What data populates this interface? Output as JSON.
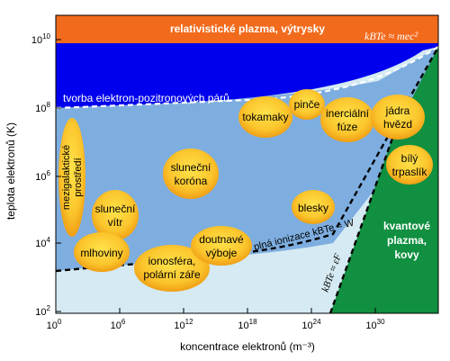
{
  "axes": {
    "y_title": "teplota elektronů (K)",
    "x_title": "koncentrace elektronů (m⁻³)",
    "y_ticks": [
      {
        "base": "10",
        "exp": "2"
      },
      {
        "base": "10",
        "exp": "4"
      },
      {
        "base": "10",
        "exp": "6"
      },
      {
        "base": "10",
        "exp": "8"
      },
      {
        "base": "10",
        "exp": "10"
      }
    ],
    "x_ticks": [
      {
        "base": "10",
        "exp": "0"
      },
      {
        "base": "10",
        "exp": "6"
      },
      {
        "base": "10",
        "exp": "12"
      },
      {
        "base": "10",
        "exp": "18"
      },
      {
        "base": "10",
        "exp": "24"
      },
      {
        "base": "10",
        "exp": "30"
      }
    ]
  },
  "regions": {
    "relativistic": "relativistické plazma, výtrysky",
    "relativistic_eq": "kBTe ≈ mec²",
    "pair_production": "tvorba elektron-pozitronových párů",
    "full_ionization": "plná ionizace kBTe ≈ W",
    "fermi": "kBTe ≈ εF",
    "quantum_lines": [
      "kvantové",
      "plazma,",
      "kovy"
    ]
  },
  "plasmas": {
    "intergalactic": [
      "mezigalaktické",
      "prostředí"
    ],
    "solar_wind": [
      "sluneční",
      "vítr"
    ],
    "nebulae": "mlhoviny",
    "ionosphere": [
      "ionosféra,",
      "polární záře"
    ],
    "discharges": [
      "doutnavé",
      "výboje"
    ],
    "corona": [
      "sluneční",
      "koróna"
    ],
    "lightning": "blesky",
    "tokamaks": "tokamaky",
    "pinch": "pinče",
    "inertial_fusion": [
      "inerciální",
      "fúze"
    ],
    "stellar_cores": [
      "jádra",
      "hvězd"
    ],
    "white_dwarfs": [
      "bílý",
      "trpaslík"
    ]
  },
  "colors": {
    "relativistic": "#f26b1d",
    "pair": "#0000ee",
    "ionized": "#7eaee0",
    "neutral": "#d5eaf2",
    "quantum": "#109040",
    "bubble_center": "#ffe24a",
    "bubble_edge": "#f0a010"
  }
}
